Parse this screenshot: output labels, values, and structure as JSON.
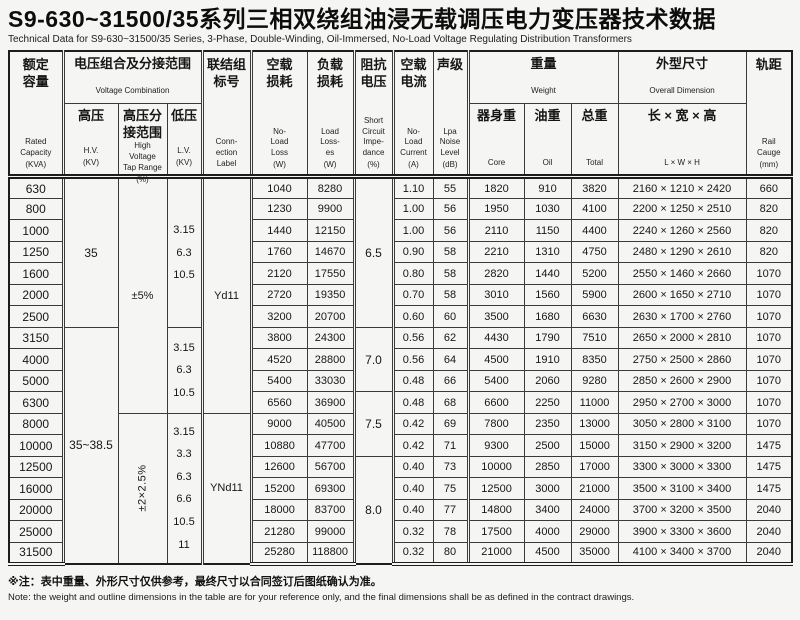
{
  "title": "S9-630~31500/35系列三相双绕组油浸无载调压电力变压器技术数据",
  "subtitle": "Technical Data for S9-630~31500/35 Series, 3-Phase, Double-Winding, Oil-Immersed, No-Load Voltage Regulating Distribution Transformers",
  "note_zh": "※注：表中重量、外形尺寸仅供参考，最终尺寸以合同签订后图纸确认为准。",
  "note_en": "Note: the weight and outline dimensions in the table are for your reference only, and the final dimensions shall be as defined in the contract drawings.",
  "colors": {
    "background": "#f5f5f3",
    "text": "#161616",
    "border": "#3a3a3a",
    "heavy_border": "#1d1d1d"
  },
  "header": {
    "capacity": {
      "zh": "额定\n容量",
      "en": "Rated\nCapacity",
      "unit": "(KVA)"
    },
    "voltage_group": {
      "zh": "电压组合及分接范围",
      "en": "Voltage Combination"
    },
    "hv": {
      "zh": "高压",
      "en": "H.V.",
      "unit": "(KV)"
    },
    "tap": {
      "zh": "高压分\n接范围",
      "en": "High\nVoltage\nTap Range",
      "unit": "(%)"
    },
    "lv": {
      "zh": "低压",
      "en": "L.V.",
      "unit": "(KV)"
    },
    "connection": {
      "zh": "联结组\n标号",
      "en": "Conn-\nection\nLabel",
      "unit": ""
    },
    "no_load_loss": {
      "zh": "空载\n损耗",
      "en": "No-\nLoad\nLoss",
      "unit": "(W)"
    },
    "load_loss": {
      "zh": "负载\n损耗",
      "en": "Load\nLoss-\nes",
      "unit": "(W)"
    },
    "impedance": {
      "zh": "阻抗\n电压",
      "en": "Short\nCircuit\nImpe-\ndance",
      "unit": "(%)"
    },
    "current": {
      "zh": "空载\n电流",
      "en": "No-\nLoad\nCurrent",
      "unit": "(A)"
    },
    "noise": {
      "zh": "声级",
      "en": "Lpa\nNoise\nLevel",
      "unit": "(dB)"
    },
    "weight_group": {
      "zh": "重量",
      "en": "Weight"
    },
    "core": {
      "zh": "器身重",
      "en": "Core",
      "unit": ""
    },
    "oil": {
      "zh": "油重",
      "en": "Oil",
      "unit": ""
    },
    "total": {
      "zh": "总重",
      "en": "Total",
      "unit": ""
    },
    "dimension_group": {
      "zh": "外型尺寸",
      "en": "Overall Dimension"
    },
    "dimension": {
      "zh": "长 × 宽 × 高",
      "en": "L × W × H"
    },
    "rail": {
      "zh": "轨距",
      "en": "Rail\nCauge",
      "unit": "(mm)"
    }
  },
  "table": {
    "spans": {
      "hv": [
        {
          "text": "35",
          "start": 0,
          "count": 7
        },
        {
          "text": "35~38.5",
          "start": 7,
          "count": 11
        }
      ],
      "tap": [
        {
          "text": "±5%",
          "start": 0,
          "count": 11,
          "rotated": false
        },
        {
          "text": "±2×2.5%",
          "start": 11,
          "count": 7,
          "rotated": true
        }
      ],
      "lv": [
        {
          "text": "3.15\n6.3\n10.5",
          "start": 0,
          "count": 7
        },
        {
          "text": "3.15\n6.3\n10.5",
          "start": 7,
          "count": 4
        },
        {
          "text": "3.15\n3.3\n6.3\n6.6\n10.5\n11",
          "start": 11,
          "count": 7
        }
      ],
      "connection": [
        {
          "text": "Yd11",
          "start": 0,
          "count": 11
        },
        {
          "text": "YNd11",
          "start": 11,
          "count": 7
        }
      ],
      "impedance": [
        {
          "text": "6.5",
          "start": 0,
          "count": 7
        },
        {
          "text": "7.0",
          "start": 7,
          "count": 3
        },
        {
          "text": "7.5",
          "start": 10,
          "count": 3
        },
        {
          "text": "8.0",
          "start": 13,
          "count": 5
        }
      ]
    },
    "rows": [
      {
        "capacity": "630",
        "no_load_loss": "1040",
        "load_loss": "8280",
        "current": "1.10",
        "noise": "55",
        "core": "1820",
        "oil": "910",
        "total": "3820",
        "dimension": "2160 × 1210 × 2420",
        "rail": "660"
      },
      {
        "capacity": "800",
        "no_load_loss": "1230",
        "load_loss": "9900",
        "current": "1.00",
        "noise": "56",
        "core": "1950",
        "oil": "1030",
        "total": "4100",
        "dimension": "2200 × 1250 × 2510",
        "rail": "820"
      },
      {
        "capacity": "1000",
        "no_load_loss": "1440",
        "load_loss": "12150",
        "current": "1.00",
        "noise": "56",
        "core": "2110",
        "oil": "1150",
        "total": "4400",
        "dimension": "2240 × 1260 × 2560",
        "rail": "820"
      },
      {
        "capacity": "1250",
        "no_load_loss": "1760",
        "load_loss": "14670",
        "current": "0.90",
        "noise": "58",
        "core": "2210",
        "oil": "1310",
        "total": "4750",
        "dimension": "2480 × 1290 × 2610",
        "rail": "820"
      },
      {
        "capacity": "1600",
        "no_load_loss": "2120",
        "load_loss": "17550",
        "current": "0.80",
        "noise": "58",
        "core": "2820",
        "oil": "1440",
        "total": "5200",
        "dimension": "2550 × 1460 × 2660",
        "rail": "1070"
      },
      {
        "capacity": "2000",
        "no_load_loss": "2720",
        "load_loss": "19350",
        "current": "0.70",
        "noise": "58",
        "core": "3010",
        "oil": "1560",
        "total": "5900",
        "dimension": "2600 × 1650 × 2710",
        "rail": "1070"
      },
      {
        "capacity": "2500",
        "no_load_loss": "3200",
        "load_loss": "20700",
        "current": "0.60",
        "noise": "60",
        "core": "3500",
        "oil": "1680",
        "total": "6630",
        "dimension": "2630 × 1700 × 2760",
        "rail": "1070"
      },
      {
        "capacity": "3150",
        "no_load_loss": "3800",
        "load_loss": "24300",
        "current": "0.56",
        "noise": "62",
        "core": "4430",
        "oil": "1790",
        "total": "7510",
        "dimension": "2650 × 2000 × 2810",
        "rail": "1070"
      },
      {
        "capacity": "4000",
        "no_load_loss": "4520",
        "load_loss": "28800",
        "current": "0.56",
        "noise": "64",
        "core": "4500",
        "oil": "1910",
        "total": "8350",
        "dimension": "2750 × 2500 × 2860",
        "rail": "1070"
      },
      {
        "capacity": "5000",
        "no_load_loss": "5400",
        "load_loss": "33030",
        "current": "0.48",
        "noise": "66",
        "core": "5400",
        "oil": "2060",
        "total": "9280",
        "dimension": "2850 × 2600 × 2900",
        "rail": "1070"
      },
      {
        "capacity": "6300",
        "no_load_loss": "6560",
        "load_loss": "36900",
        "current": "0.48",
        "noise": "68",
        "core": "6600",
        "oil": "2250",
        "total": "11000",
        "dimension": "2950 × 2700 × 3000",
        "rail": "1070"
      },
      {
        "capacity": "8000",
        "no_load_loss": "9000",
        "load_loss": "40500",
        "current": "0.42",
        "noise": "69",
        "core": "7800",
        "oil": "2350",
        "total": "13000",
        "dimension": "3050 × 2800 × 3100",
        "rail": "1070"
      },
      {
        "capacity": "10000",
        "no_load_loss": "10880",
        "load_loss": "47700",
        "current": "0.42",
        "noise": "71",
        "core": "9300",
        "oil": "2500",
        "total": "15000",
        "dimension": "3150 × 2900 × 3200",
        "rail": "1475"
      },
      {
        "capacity": "12500",
        "no_load_loss": "12600",
        "load_loss": "56700",
        "current": "0.40",
        "noise": "73",
        "core": "10000",
        "oil": "2850",
        "total": "17000",
        "dimension": "3300 × 3000 × 3300",
        "rail": "1475"
      },
      {
        "capacity": "16000",
        "no_load_loss": "15200",
        "load_loss": "69300",
        "current": "0.40",
        "noise": "75",
        "core": "12500",
        "oil": "3000",
        "total": "21000",
        "dimension": "3500 × 3100 × 3400",
        "rail": "1475"
      },
      {
        "capacity": "20000",
        "no_load_loss": "18000",
        "load_loss": "83700",
        "current": "0.40",
        "noise": "77",
        "core": "14800",
        "oil": "3400",
        "total": "24000",
        "dimension": "3700 × 3200 × 3500",
        "rail": "2040"
      },
      {
        "capacity": "25000",
        "no_load_loss": "21280",
        "load_loss": "99000",
        "current": "0.32",
        "noise": "78",
        "core": "17500",
        "oil": "4000",
        "total": "29000",
        "dimension": "3900 × 3300 × 3600",
        "rail": "2040"
      },
      {
        "capacity": "31500",
        "no_load_loss": "25280",
        "load_loss": "118800",
        "current": "0.32",
        "noise": "80",
        "core": "21000",
        "oil": "4500",
        "total": "35000",
        "dimension": "4100 × 3400 × 3700",
        "rail": "2040"
      }
    ]
  }
}
